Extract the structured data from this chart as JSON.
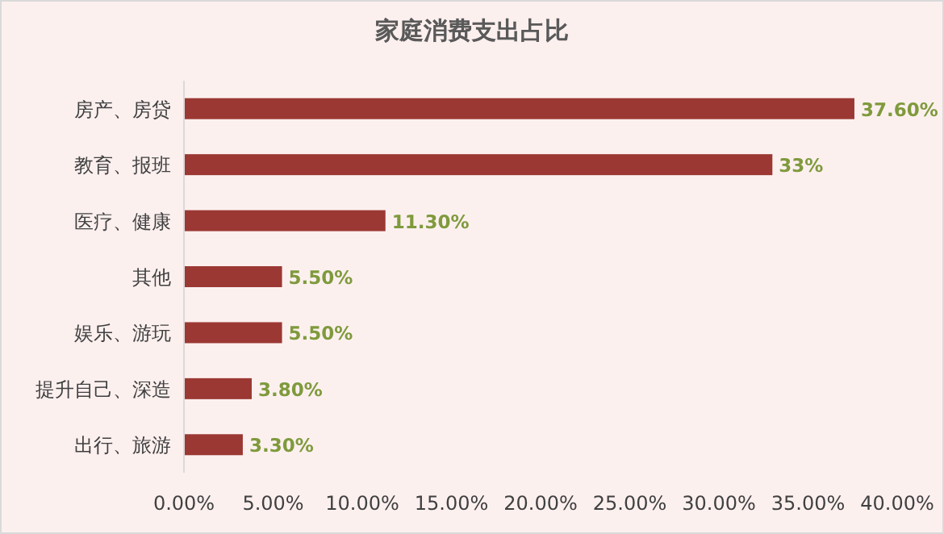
{
  "chart_data": {
    "type": "bar",
    "orientation": "horizontal",
    "title": "家庭消费支出占比",
    "categories": [
      "房产、房贷",
      "教育、报班",
      "医疗、健康",
      "其他",
      "娱乐、游玩",
      "提升自己、深造",
      "出行、旅游"
    ],
    "values": [
      37.6,
      33,
      11.3,
      5.5,
      5.5,
      3.8,
      3.3
    ],
    "value_labels": [
      "37.60%",
      "33%",
      "11.30%",
      "5.50%",
      "5.50%",
      "3.80%",
      "3.30%"
    ],
    "color": "#9b3833",
    "xlim": [
      0,
      40
    ],
    "xticks": [
      {
        "value": 0,
        "label": "0.00%"
      },
      {
        "value": 5,
        "label": "5.00%"
      },
      {
        "value": 10,
        "label": "10.00%"
      },
      {
        "value": 15,
        "label": "15.00%"
      },
      {
        "value": 20,
        "label": "20.00%"
      },
      {
        "value": 25,
        "label": "25.00%"
      },
      {
        "value": 30,
        "label": "30.00%"
      },
      {
        "value": 35,
        "label": "35.00%"
      },
      {
        "value": 40,
        "label": "40.00%"
      }
    ],
    "grid": false
  }
}
